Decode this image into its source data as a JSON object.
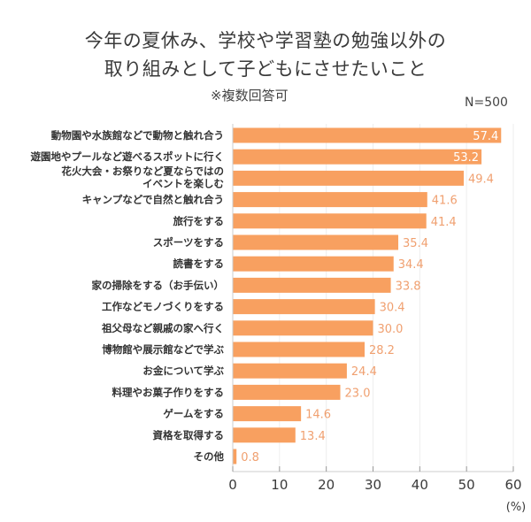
{
  "chart_data": {
    "type": "bar",
    "orientation": "horizontal",
    "title_lines": [
      "今年の夏休み、学校や学習塾の勉強以外の",
      "取り組みとして子どもにさせたいこと"
    ],
    "subtitle": "※複数回答可",
    "sample_size": "N=500",
    "xlabel": "(%)",
    "xlim": [
      0,
      60
    ],
    "xticks": [
      0,
      10,
      20,
      30,
      40,
      50,
      60
    ],
    "grid": true,
    "bar_color": "#F8A060",
    "label_color": "#F0A070",
    "categories": [
      [
        "動物園や水族館などで動物と触れ合う"
      ],
      [
        "遊園地やプールなど遊べるスポットに行く"
      ],
      [
        "花火大会・お祭りなど夏ならではの",
        "イベントを楽しむ"
      ],
      [
        "キャンプなどで自然と触れ合う"
      ],
      [
        "旅行をする"
      ],
      [
        "スポーツをする"
      ],
      [
        "読書をする"
      ],
      [
        "家の掃除をする（お手伝い）"
      ],
      [
        "工作などモノづくりをする"
      ],
      [
        "祖父母など親戚の家へ行く"
      ],
      [
        "博物館や展示館などで学ぶ"
      ],
      [
        "お金について学ぶ"
      ],
      [
        "料理やお菓子作りをする"
      ],
      [
        "ゲームをする"
      ],
      [
        "資格を取得する"
      ],
      [
        "その他"
      ]
    ],
    "values": [
      57.4,
      53.2,
      49.4,
      41.6,
      41.4,
      35.4,
      34.4,
      33.8,
      30.4,
      30.0,
      28.2,
      24.4,
      23.0,
      14.6,
      13.4,
      0.8
    ],
    "value_labels": [
      "57.4",
      "53.2",
      "49.4",
      "41.6",
      "41.4",
      "35.4",
      "34.4",
      "33.8",
      "30.4",
      "30.0",
      "28.2",
      "24.4",
      "23.0",
      "14.6",
      "13.4",
      "0.8"
    ],
    "labels_inside_top_n": 2
  }
}
